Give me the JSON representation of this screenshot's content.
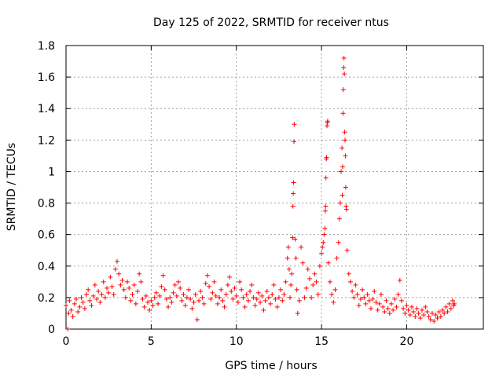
{
  "chart_data": {
    "type": "scatter",
    "title": "Day 125 of 2022, SRMTID for receiver ntus",
    "xlabel": "GPS time / hours",
    "ylabel": "SRMTID / TECUs",
    "xlim": [
      0,
      24.5
    ],
    "ylim": [
      0,
      1.8
    ],
    "x_ticks": [
      0,
      5,
      10,
      15,
      20
    ],
    "x_tick_labels": [
      "0",
      "5",
      "10",
      "15",
      "20"
    ],
    "y_ticks": [
      0,
      0.2,
      0.4,
      0.6,
      0.8,
      1,
      1.2,
      1.4,
      1.6,
      1.8
    ],
    "y_tick_labels": [
      "0",
      "0.2",
      "0.4",
      "0.6",
      "0.8",
      "1",
      "1.2",
      "1.4",
      "1.6",
      "1.8"
    ],
    "grid": true,
    "marker": "+",
    "marker_color": "#ff0000",
    "series": [
      {
        "name": "SRMTID",
        "points": [
          [
            0.0,
            0.15
          ],
          [
            0.1,
            0.0
          ],
          [
            0.15,
            0.1
          ],
          [
            0.2,
            0.18
          ],
          [
            0.3,
            0.12
          ],
          [
            0.4,
            0.08
          ],
          [
            0.5,
            0.16
          ],
          [
            0.6,
            0.19
          ],
          [
            0.7,
            0.11
          ],
          [
            0.8,
            0.14
          ],
          [
            0.9,
            0.2
          ],
          [
            1.0,
            0.17
          ],
          [
            1.1,
            0.13
          ],
          [
            1.2,
            0.22
          ],
          [
            1.3,
            0.25
          ],
          [
            1.4,
            0.18
          ],
          [
            1.5,
            0.15
          ],
          [
            1.6,
            0.21
          ],
          [
            1.7,
            0.28
          ],
          [
            1.8,
            0.19
          ],
          [
            1.9,
            0.24
          ],
          [
            2.0,
            0.17
          ],
          [
            2.1,
            0.22
          ],
          [
            2.2,
            0.3
          ],
          [
            2.3,
            0.2
          ],
          [
            2.4,
            0.26
          ],
          [
            2.5,
            0.23
          ],
          [
            2.6,
            0.33
          ],
          [
            2.7,
            0.27
          ],
          [
            2.8,
            0.22
          ],
          [
            2.9,
            0.38
          ],
          [
            3.0,
            0.43
          ],
          [
            3.1,
            0.35
          ],
          [
            3.2,
            0.28
          ],
          [
            3.3,
            0.31
          ],
          [
            3.4,
            0.25
          ],
          [
            3.5,
            0.2
          ],
          [
            3.6,
            0.3
          ],
          [
            3.7,
            0.26
          ],
          [
            3.8,
            0.18
          ],
          [
            3.9,
            0.22
          ],
          [
            4.0,
            0.28
          ],
          [
            4.1,
            0.16
          ],
          [
            4.2,
            0.24
          ],
          [
            4.3,
            0.35
          ],
          [
            4.4,
            0.3
          ],
          [
            4.5,
            0.19
          ],
          [
            4.6,
            0.14
          ],
          [
            4.7,
            0.21
          ],
          [
            4.8,
            0.17
          ],
          [
            4.9,
            0.12
          ],
          [
            5.0,
            0.18
          ],
          [
            5.1,
            0.15
          ],
          [
            5.2,
            0.2
          ],
          [
            5.3,
            0.23
          ],
          [
            5.4,
            0.16
          ],
          [
            5.5,
            0.21
          ],
          [
            5.6,
            0.27
          ],
          [
            5.7,
            0.34
          ],
          [
            5.8,
            0.25
          ],
          [
            5.9,
            0.19
          ],
          [
            6.0,
            0.14
          ],
          [
            6.1,
            0.2
          ],
          [
            6.2,
            0.17
          ],
          [
            6.3,
            0.23
          ],
          [
            6.4,
            0.28
          ],
          [
            6.5,
            0.21
          ],
          [
            6.6,
            0.3
          ],
          [
            6.7,
            0.26
          ],
          [
            6.8,
            0.18
          ],
          [
            6.9,
            0.22
          ],
          [
            7.0,
            0.15
          ],
          [
            7.1,
            0.2
          ],
          [
            7.2,
            0.25
          ],
          [
            7.3,
            0.19
          ],
          [
            7.4,
            0.13
          ],
          [
            7.5,
            0.17
          ],
          [
            7.6,
            0.22
          ],
          [
            7.7,
            0.06
          ],
          [
            7.8,
            0.18
          ],
          [
            7.9,
            0.24
          ],
          [
            8.0,
            0.2
          ],
          [
            8.1,
            0.16
          ],
          [
            8.2,
            0.29
          ],
          [
            8.3,
            0.34
          ],
          [
            8.4,
            0.27
          ],
          [
            8.5,
            0.19
          ],
          [
            8.6,
            0.23
          ],
          [
            8.7,
            0.3
          ],
          [
            8.8,
            0.21
          ],
          [
            8.9,
            0.16
          ],
          [
            9.0,
            0.2
          ],
          [
            9.1,
            0.25
          ],
          [
            9.2,
            0.18
          ],
          [
            9.3,
            0.14
          ],
          [
            9.4,
            0.22
          ],
          [
            9.5,
            0.28
          ],
          [
            9.6,
            0.33
          ],
          [
            9.7,
            0.24
          ],
          [
            9.8,
            0.19
          ],
          [
            9.9,
            0.26
          ],
          [
            10.0,
            0.21
          ],
          [
            10.1,
            0.17
          ],
          [
            10.2,
            0.3
          ],
          [
            10.3,
            0.25
          ],
          [
            10.4,
            0.2
          ],
          [
            10.5,
            0.14
          ],
          [
            10.6,
            0.22
          ],
          [
            10.7,
            0.18
          ],
          [
            10.8,
            0.24
          ],
          [
            10.9,
            0.28
          ],
          [
            11.0,
            0.2
          ],
          [
            11.1,
            0.15
          ],
          [
            11.2,
            0.19
          ],
          [
            11.3,
            0.23
          ],
          [
            11.4,
            0.17
          ],
          [
            11.5,
            0.21
          ],
          [
            11.6,
            0.12
          ],
          [
            11.7,
            0.18
          ],
          [
            11.8,
            0.24
          ],
          [
            11.9,
            0.2
          ],
          [
            12.0,
            0.16
          ],
          [
            12.1,
            0.22
          ],
          [
            12.2,
            0.28
          ],
          [
            12.3,
            0.19
          ],
          [
            12.4,
            0.14
          ],
          [
            12.5,
            0.2
          ],
          [
            12.6,
            0.25
          ],
          [
            12.7,
            0.18
          ],
          [
            12.8,
            0.22
          ],
          [
            12.9,
            0.3
          ],
          [
            13.0,
            0.45
          ],
          [
            13.05,
            0.52
          ],
          [
            13.1,
            0.38
          ],
          [
            13.15,
            0.2
          ],
          [
            13.2,
            0.28
          ],
          [
            13.25,
            0.35
          ],
          [
            13.3,
            0.58
          ],
          [
            13.32,
            0.78
          ],
          [
            13.34,
            0.86
          ],
          [
            13.36,
            0.93
          ],
          [
            13.38,
            1.19
          ],
          [
            13.4,
            1.3
          ],
          [
            13.45,
            0.57
          ],
          [
            13.5,
            0.45
          ],
          [
            13.55,
            0.25
          ],
          [
            13.6,
            0.1
          ],
          [
            13.7,
            0.18
          ],
          [
            13.8,
            0.52
          ],
          [
            13.9,
            0.42
          ],
          [
            14.0,
            0.2
          ],
          [
            14.1,
            0.26
          ],
          [
            14.2,
            0.38
          ],
          [
            14.3,
            0.32
          ],
          [
            14.4,
            0.2
          ],
          [
            14.5,
            0.28
          ],
          [
            14.6,
            0.35
          ],
          [
            14.7,
            0.3
          ],
          [
            14.8,
            0.22
          ],
          [
            14.9,
            0.4
          ],
          [
            15.0,
            0.48
          ],
          [
            15.05,
            0.52
          ],
          [
            15.1,
            0.55
          ],
          [
            15.15,
            0.6
          ],
          [
            15.2,
            0.64
          ],
          [
            15.22,
            0.75
          ],
          [
            15.24,
            0.78
          ],
          [
            15.26,
            0.96
          ],
          [
            15.28,
            1.08
          ],
          [
            15.3,
            1.09
          ],
          [
            15.32,
            1.29
          ],
          [
            15.34,
            1.31
          ],
          [
            15.36,
            1.32
          ],
          [
            15.4,
            0.42
          ],
          [
            15.5,
            0.3
          ],
          [
            15.6,
            0.22
          ],
          [
            15.7,
            0.17
          ],
          [
            15.8,
            0.25
          ],
          [
            15.9,
            0.45
          ],
          [
            16.0,
            0.55
          ],
          [
            16.05,
            0.7
          ],
          [
            16.1,
            0.8
          ],
          [
            16.15,
            1.0
          ],
          [
            16.2,
            1.15
          ],
          [
            16.22,
            0.85
          ],
          [
            16.24,
            1.03
          ],
          [
            16.26,
            1.37
          ],
          [
            16.28,
            1.52
          ],
          [
            16.3,
            1.66
          ],
          [
            16.32,
            1.72
          ],
          [
            16.34,
            1.62
          ],
          [
            16.36,
            1.25
          ],
          [
            16.38,
            1.2
          ],
          [
            16.4,
            1.1
          ],
          [
            16.42,
            0.9
          ],
          [
            16.44,
            0.78
          ],
          [
            16.46,
            0.76
          ],
          [
            16.5,
            0.5
          ],
          [
            16.6,
            0.35
          ],
          [
            16.7,
            0.3
          ],
          [
            16.8,
            0.24
          ],
          [
            16.9,
            0.2
          ],
          [
            17.0,
            0.28
          ],
          [
            17.1,
            0.22
          ],
          [
            17.2,
            0.15
          ],
          [
            17.3,
            0.19
          ],
          [
            17.4,
            0.25
          ],
          [
            17.5,
            0.2
          ],
          [
            17.6,
            0.16
          ],
          [
            17.7,
            0.22
          ],
          [
            17.8,
            0.18
          ],
          [
            17.9,
            0.13
          ],
          [
            18.0,
            0.19
          ],
          [
            18.1,
            0.24
          ],
          [
            18.2,
            0.17
          ],
          [
            18.3,
            0.12
          ],
          [
            18.4,
            0.16
          ],
          [
            18.5,
            0.22
          ],
          [
            18.6,
            0.14
          ],
          [
            18.7,
            0.11
          ],
          [
            18.8,
            0.18
          ],
          [
            18.9,
            0.13
          ],
          [
            19.0,
            0.1
          ],
          [
            19.1,
            0.16
          ],
          [
            19.2,
            0.12
          ],
          [
            19.3,
            0.19
          ],
          [
            19.4,
            0.14
          ],
          [
            19.5,
            0.22
          ],
          [
            19.6,
            0.31
          ],
          [
            19.7,
            0.18
          ],
          [
            19.8,
            0.13
          ],
          [
            19.9,
            0.1
          ],
          [
            20.0,
            0.15
          ],
          [
            20.1,
            0.12
          ],
          [
            20.2,
            0.09
          ],
          [
            20.3,
            0.14
          ],
          [
            20.4,
            0.11
          ],
          [
            20.5,
            0.08
          ],
          [
            20.6,
            0.13
          ],
          [
            20.7,
            0.1
          ],
          [
            20.8,
            0.07
          ],
          [
            20.9,
            0.12
          ],
          [
            21.0,
            0.09
          ],
          [
            21.1,
            0.14
          ],
          [
            21.2,
            0.11
          ],
          [
            21.3,
            0.08
          ],
          [
            21.4,
            0.06
          ],
          [
            21.5,
            0.1
          ],
          [
            21.6,
            0.05
          ],
          [
            21.7,
            0.09
          ],
          [
            21.8,
            0.07
          ],
          [
            21.9,
            0.11
          ],
          [
            22.0,
            0.08
          ],
          [
            22.1,
            0.12
          ],
          [
            22.2,
            0.1
          ],
          [
            22.3,
            0.14
          ],
          [
            22.4,
            0.11
          ],
          [
            22.5,
            0.16
          ],
          [
            22.6,
            0.13
          ],
          [
            22.7,
            0.18
          ],
          [
            22.75,
            0.15
          ],
          [
            22.8,
            0.16
          ]
        ]
      }
    ]
  }
}
